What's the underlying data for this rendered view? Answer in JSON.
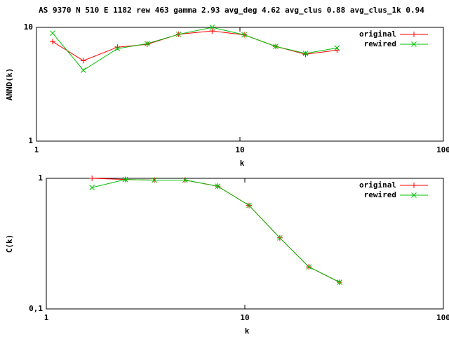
{
  "chart_data": [
    {
      "type": "line",
      "title": "AS 9370 N 510 E 1182 rew 463 gamma 2.93 avg_deg 4.62 avg_clus 0.88 avg_clus_1k 0.94",
      "xlabel": "k",
      "ylabel": "ANND(k)",
      "xlog": true,
      "ylog": true,
      "xlim": [
        1,
        100
      ],
      "ylim": [
        1,
        10
      ],
      "xticks": [
        1,
        10,
        100
      ],
      "yticks": [
        1,
        10
      ],
      "legend": "top-right",
      "x": [
        1.2,
        1.7,
        2.5,
        3.5,
        5,
        7.3,
        10.5,
        15,
        21,
        30
      ],
      "series": [
        {
          "name": "original",
          "color": "#ff0000",
          "marker": "+",
          "values": [
            7.5,
            5.1,
            6.7,
            7.1,
            8.7,
            9.3,
            8.6,
            6.8,
            5.8,
            6.3
          ]
        },
        {
          "name": "rewired",
          "color": "#00c000",
          "marker": "x",
          "values": [
            8.9,
            4.2,
            6.5,
            7.2,
            8.7,
            10,
            8.6,
            6.8,
            5.9,
            6.6
          ]
        }
      ]
    },
    {
      "type": "line",
      "xlabel": "k",
      "ylabel": "C(k)",
      "xlog": true,
      "ylog": true,
      "xlim": [
        1,
        100
      ],
      "ylim": [
        0.1,
        1
      ],
      "xticks": [
        1,
        10,
        100
      ],
      "yticks": [
        {
          "value": 0.1,
          "label": "0,1"
        },
        1
      ],
      "legend": "top-right",
      "x": [
        1.7,
        2.5,
        3.5,
        5,
        7.3,
        10.5,
        15,
        21,
        30
      ],
      "series": [
        {
          "name": "original",
          "color": "#ff0000",
          "marker": "+",
          "values": [
            1.0,
            0.98,
            0.97,
            0.97,
            0.87,
            0.62,
            0.35,
            0.21,
            0.16
          ]
        },
        {
          "name": "rewired",
          "color": "#00c000",
          "marker": "x",
          "values": [
            0.85,
            0.98,
            0.97,
            0.97,
            0.87,
            0.62,
            0.35,
            0.21,
            0.16
          ]
        }
      ]
    }
  ]
}
